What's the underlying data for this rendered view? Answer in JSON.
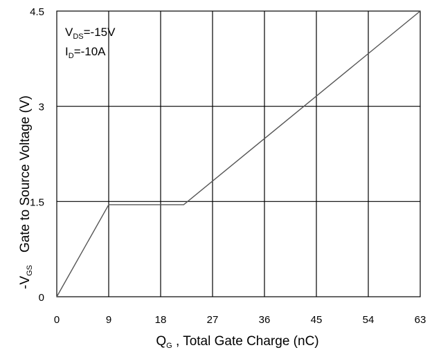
{
  "chart_data": {
    "type": "line",
    "x": [
      0,
      9,
      22,
      63
    ],
    "y": [
      0,
      1.45,
      1.45,
      4.5
    ],
    "xlim": [
      0,
      63
    ],
    "ylim": [
      0,
      4.5
    ],
    "xticks": [
      "0",
      "9",
      "18",
      "27",
      "36",
      "45",
      "54",
      "63"
    ],
    "yticks": [
      "0",
      "1.5",
      "3",
      "4.5"
    ],
    "grid": true,
    "xlabel": {
      "q": "Q",
      "q_sub": "G",
      "rest": " , Total Gate Charge (nC)"
    },
    "ylabel": {
      "prefix": "-V",
      "prefix_sub": "GS",
      "rest": "Gate to Source Voltage (V)"
    },
    "annotations": [
      {
        "main": "V",
        "sub": "DS",
        "rest": "=-15V"
      },
      {
        "main": "I",
        "sub": "D",
        "rest": "=-10A"
      }
    ],
    "line_color": "#555555"
  }
}
